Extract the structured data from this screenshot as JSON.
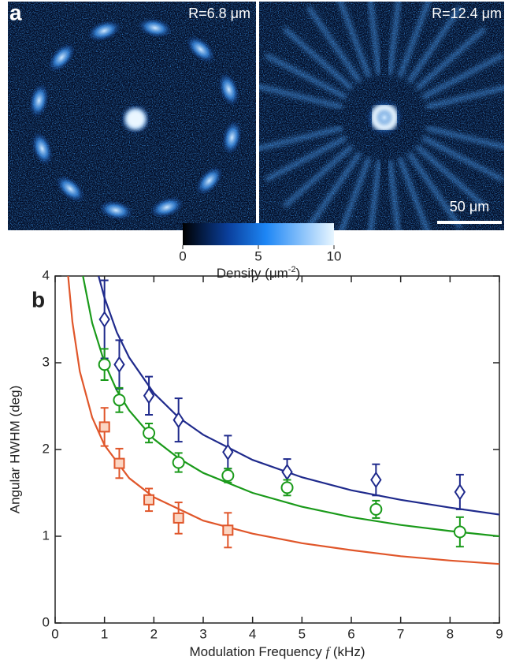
{
  "panel_a": {
    "label": "a",
    "images": [
      {
        "caption": "R=6.8 μm"
      },
      {
        "caption": "R=12.4 μm"
      }
    ],
    "scale_bar": "50 μm",
    "colorbar": {
      "lim": [
        0,
        10
      ],
      "ticks": [
        0,
        5,
        10
      ],
      "label": [
        "Density (μm",
        "-2",
        ")"
      ]
    }
  },
  "chart_data": {
    "type": "scatter",
    "panel_label": "b",
    "xlabel": [
      "Modulation Frequency ",
      "f",
      " (kHz)"
    ],
    "ylabel": "Angular HWHM (deg)",
    "xlim": [
      0,
      9
    ],
    "ylim": [
      0,
      4
    ],
    "xticks": [
      0,
      1,
      2,
      3,
      4,
      5,
      6,
      7,
      8,
      9
    ],
    "yticks": [
      0,
      1,
      2,
      3,
      4
    ],
    "series": [
      {
        "marker": "diamond",
        "color": "#1f2a8c",
        "fill": "#ffffff",
        "x": [
          1,
          1.3,
          1.9,
          2.5,
          3.5,
          4.7,
          6.5,
          8.2
        ],
        "values": [
          3.5,
          2.98,
          2.62,
          2.34,
          1.97,
          1.74,
          1.65,
          1.51
        ],
        "errors": [
          0.45,
          0.28,
          0.22,
          0.25,
          0.19,
          0.15,
          0.18,
          0.2
        ]
      },
      {
        "marker": "circle",
        "color": "#1a9a1a",
        "fill": "#ffffff",
        "x": [
          1,
          1.3,
          1.9,
          2.5,
          3.5,
          4.7,
          6.5,
          8.2
        ],
        "values": [
          2.98,
          2.57,
          2.19,
          1.85,
          1.7,
          1.56,
          1.31,
          1.05
        ],
        "errors": [
          0.18,
          0.14,
          0.11,
          0.11,
          0.08,
          0.09,
          0.1,
          0.17
        ]
      },
      {
        "marker": "square",
        "color": "#e0562a",
        "fill": "#fbd5c2",
        "x": [
          1,
          1.3,
          1.9,
          2.5,
          3.5
        ],
        "values": [
          2.26,
          1.84,
          1.42,
          1.21,
          1.07
        ],
        "errors": [
          0.22,
          0.17,
          0.13,
          0.18,
          0.2
        ]
      }
    ],
    "fits": [
      {
        "color": "#1f2a8c",
        "x": [
          0.88,
          1,
          1.25,
          1.5,
          2,
          2.5,
          3,
          4,
          5,
          6,
          7,
          8,
          9
        ],
        "values": [
          4.0,
          3.75,
          3.35,
          3.06,
          2.65,
          2.37,
          2.17,
          1.88,
          1.68,
          1.53,
          1.42,
          1.33,
          1.25
        ]
      },
      {
        "color": "#1a9a1a",
        "x": [
          0.56,
          0.75,
          1,
          1.25,
          1.5,
          2,
          2.5,
          3,
          4,
          5,
          6,
          7,
          8,
          9
        ],
        "values": [
          4.01,
          3.46,
          3.0,
          2.68,
          2.45,
          2.12,
          1.9,
          1.73,
          1.5,
          1.34,
          1.22,
          1.13,
          1.06,
          1.0
        ]
      },
      {
        "color": "#e0562a",
        "x": [
          0.26,
          0.35,
          0.5,
          0.75,
          1,
          1.5,
          2,
          3,
          4,
          5,
          6,
          7,
          8,
          9
        ],
        "values": [
          4.02,
          3.47,
          2.9,
          2.37,
          2.05,
          1.67,
          1.45,
          1.18,
          1.03,
          0.92,
          0.84,
          0.77,
          0.72,
          0.68
        ]
      }
    ]
  }
}
